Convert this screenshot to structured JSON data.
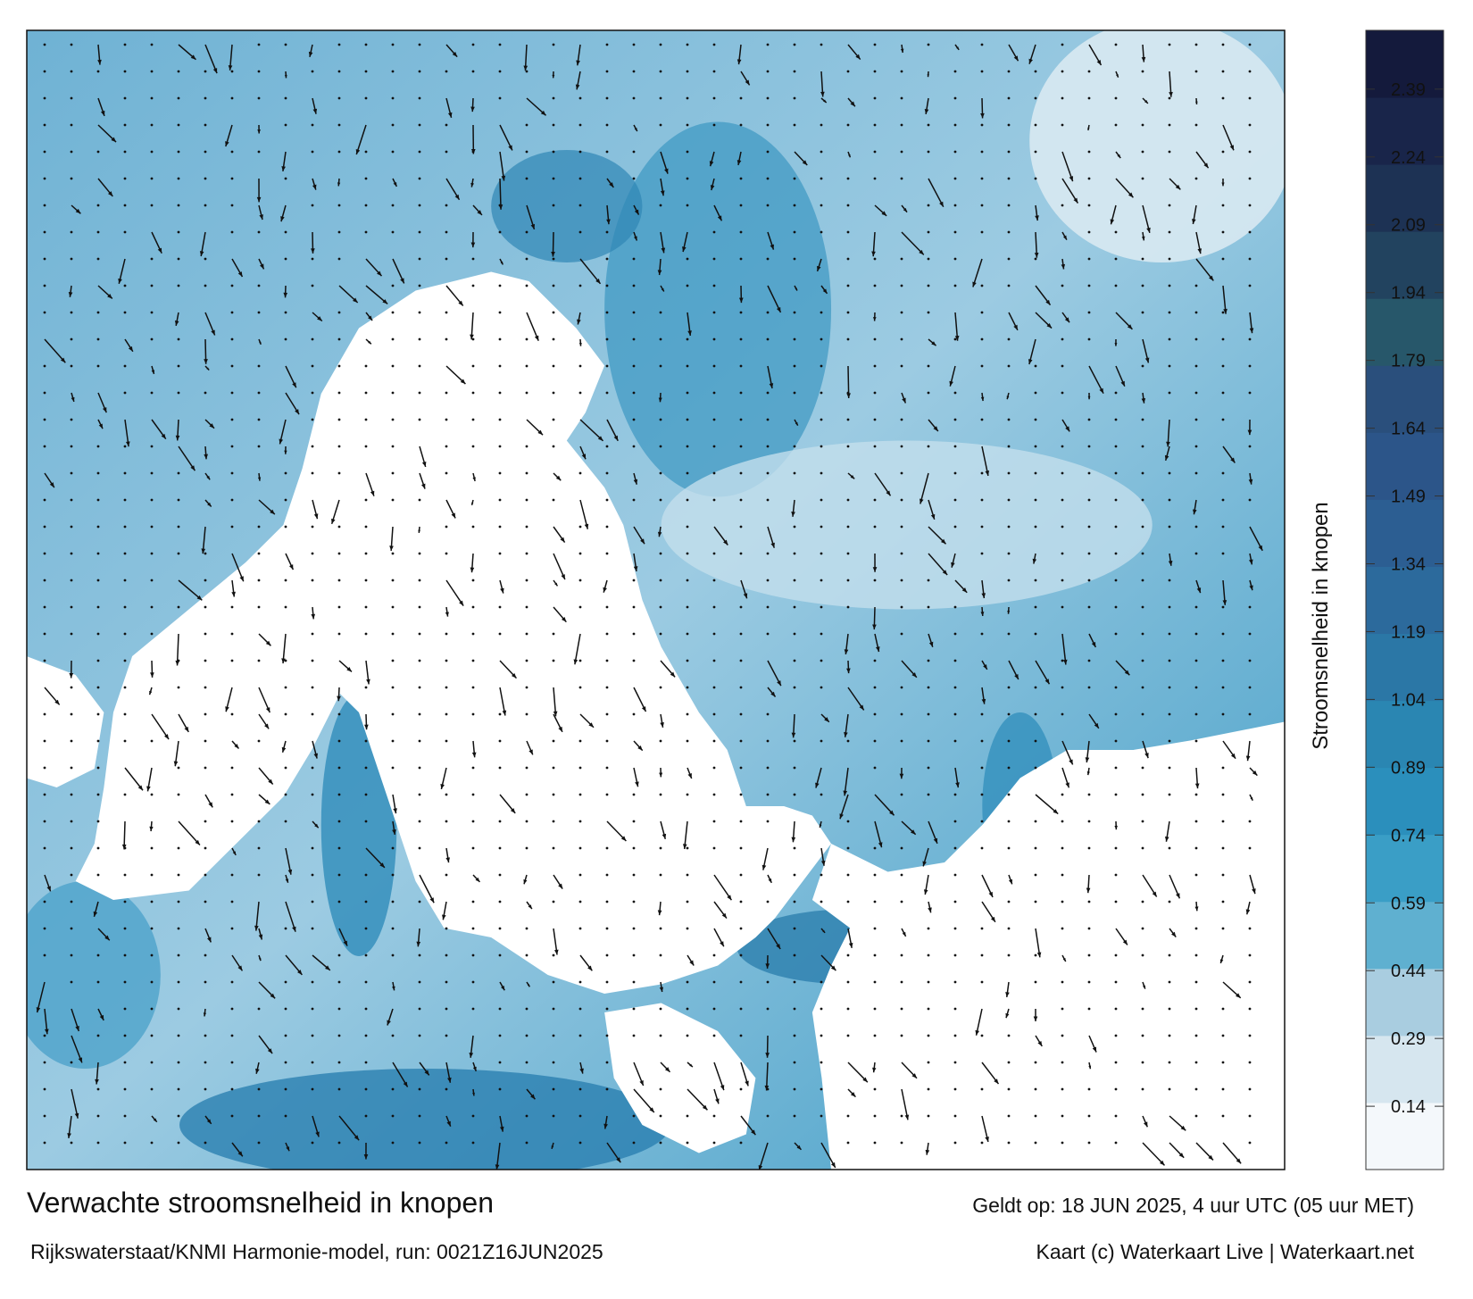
{
  "title": "Verwachte stroomsnelheid in knopen",
  "subtitle": "Rijkswaterstaat/KNMI Harmonie-model, run: 0021Z16JUN2025",
  "valid_time": "Geldt op: 18 JUN 2025, 4 uur UTC (05 uur MET)",
  "credit": "Kaart (c) Waterkaart Live | Waterkaart.net",
  "colorbar": {
    "label": "Stroomsnelheid in knopen",
    "lim": [
      0,
      2.52
    ],
    "ticks": [
      0.14,
      0.29,
      0.44,
      0.59,
      0.74,
      0.89,
      1.04,
      1.19,
      1.34,
      1.49,
      1.64,
      1.79,
      1.94,
      2.09,
      2.24,
      2.39
    ],
    "colors": [
      "#f4f8fb",
      "#d6e6ef",
      "#a9cde0",
      "#5fb0d0",
      "#3a9ec6",
      "#2b8fbc",
      "#2a86b2",
      "#2b77a6",
      "#2c6a9c",
      "#2c5e92",
      "#2c5589",
      "#2a4f7c",
      "#27576a",
      "#22435f",
      "#1d3254",
      "#19254a",
      "#141a3c"
    ]
  }
}
